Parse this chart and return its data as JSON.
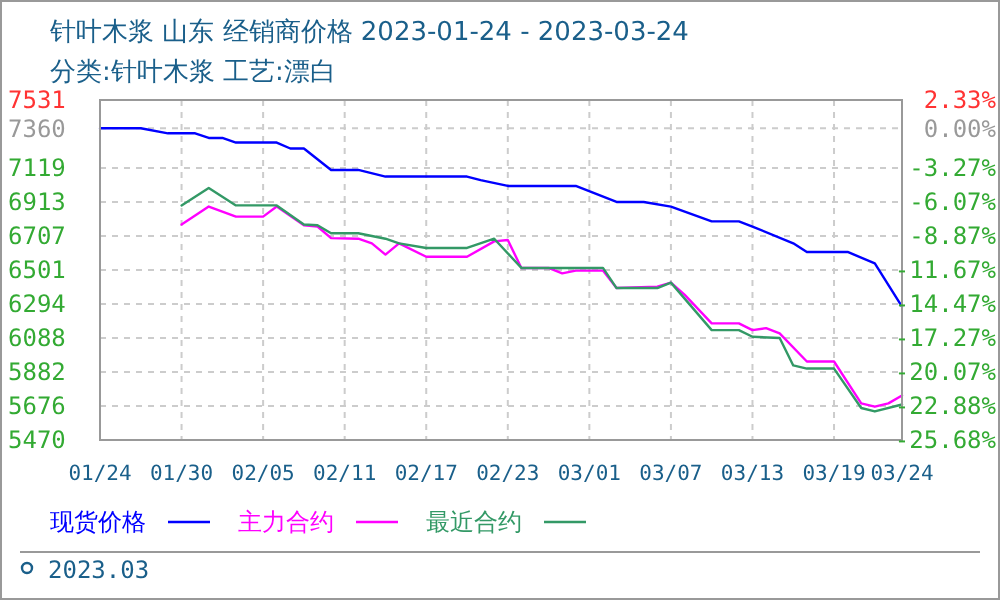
{
  "chart_data": {
    "type": "line",
    "title": "针叶木浆 山东 经销商价格 2023-01-24 - 2023-03-24",
    "subtitle": "分类:针叶木浆 工艺:漂白",
    "annotations": [
      "2023.03"
    ],
    "xlim": [
      "2023-01-24",
      "2023-03-24"
    ],
    "xticks": [
      {
        "value": "2023-01-24",
        "label": "01/24"
      },
      {
        "value": "2023-01-30",
        "label": "01/30"
      },
      {
        "value": "2023-02-05",
        "label": "02/05"
      },
      {
        "value": "2023-02-11",
        "label": "02/11"
      },
      {
        "value": "2023-02-17",
        "label": "02/17"
      },
      {
        "value": "2023-02-23",
        "label": "02/23"
      },
      {
        "value": "2023-03-01",
        "label": "03/01"
      },
      {
        "value": "2023-03-07",
        "label": "03/07"
      },
      {
        "value": "2023-03-13",
        "label": "03/13"
      },
      {
        "value": "2023-03-19",
        "label": "03/19"
      },
      {
        "value": "2023-03-24",
        "label": "03/24"
      }
    ],
    "ylim": [
      5470,
      7531
    ],
    "yticks": [
      5470,
      5676,
      5882,
      6088,
      6294,
      6501,
      6707,
      6913,
      7119,
      7360,
      7531
    ],
    "y2lim": [
      -25.68,
      2.33
    ],
    "y2ticks": [
      {
        "value": -25.68,
        "label": "-25.68%"
      },
      {
        "value": -22.88,
        "label": "-22.88%"
      },
      {
        "value": -20.07,
        "label": "-20.07%"
      },
      {
        "value": -17.27,
        "label": "-17.27%"
      },
      {
        "value": -14.47,
        "label": "-14.47%"
      },
      {
        "value": -11.67,
        "label": "-11.67%"
      },
      {
        "value": -8.87,
        "label": "-8.87%"
      },
      {
        "value": -6.07,
        "label": "-6.07%"
      },
      {
        "value": -3.27,
        "label": "-3.27%"
      },
      {
        "value": 0,
        "label": "0.00%"
      },
      {
        "value": 2.33,
        "label": "2.33%"
      }
    ],
    "grid": true,
    "legend": "bottom",
    "series": [
      {
        "name": "现货价格",
        "color": "#0000ff",
        "x": [
          "2023-01-24",
          "2023-01-27",
          "2023-01-29",
          "2023-01-31",
          "2023-02-01",
          "2023-02-02",
          "2023-02-03",
          "2023-02-06",
          "2023-02-07",
          "2023-02-08",
          "2023-02-10",
          "2023-02-12",
          "2023-02-14",
          "2023-02-20",
          "2023-02-21",
          "2023-02-23",
          "2023-02-28",
          "2023-03-03",
          "2023-03-05",
          "2023-03-07",
          "2023-03-10",
          "2023-03-12",
          "2023-03-13",
          "2023-03-16",
          "2023-03-17",
          "2023-03-20",
          "2023-03-22",
          "2023-03-24"
        ],
        "values": [
          7360,
          7360,
          7329,
          7329,
          7301,
          7301,
          7273,
          7273,
          7237,
          7237,
          7107,
          7107,
          7067,
          7067,
          7045,
          7010,
          7010,
          6913,
          6913,
          6885,
          6795,
          6795,
          6764,
          6662,
          6610,
          6610,
          6541,
          6279
        ]
      },
      {
        "name": "主力合约",
        "color": "#ff00ff",
        "x": [
          "2023-01-30",
          "2023-02-01",
          "2023-02-03",
          "2023-02-05",
          "2023-02-06",
          "2023-02-08",
          "2023-02-09",
          "2023-02-10",
          "2023-02-12",
          "2023-02-13",
          "2023-02-14",
          "2023-02-15",
          "2023-02-17",
          "2023-02-20",
          "2023-02-22",
          "2023-02-23",
          "2023-02-24",
          "2023-02-26",
          "2023-02-27",
          "2023-02-28",
          "2023-03-02",
          "2023-03-03",
          "2023-03-06",
          "2023-03-07",
          "2023-03-08",
          "2023-03-10",
          "2023-03-12",
          "2023-03-13",
          "2023-03-14",
          "2023-03-15",
          "2023-03-17",
          "2023-03-19",
          "2023-03-21",
          "2023-03-22",
          "2023-03-23",
          "2023-03-24"
        ],
        "values": [
          6776,
          6885,
          6824,
          6824,
          6885,
          6772,
          6764,
          6694,
          6690,
          6662,
          6594,
          6662,
          6581,
          6581,
          6674,
          6682,
          6513,
          6513,
          6480,
          6497,
          6497,
          6391,
          6400,
          6424,
          6351,
          6177,
          6177,
          6136,
          6148,
          6116,
          5946,
          5946,
          5692,
          5672,
          5692,
          5740
        ]
      },
      {
        "name": "最近合约",
        "color": "#339966",
        "x": [
          "2023-01-30",
          "2023-02-01",
          "2023-02-03",
          "2023-02-06",
          "2023-02-08",
          "2023-02-09",
          "2023-02-10",
          "2023-02-12",
          "2023-02-14",
          "2023-02-15",
          "2023-02-17",
          "2023-02-20",
          "2023-02-22",
          "2023-02-24",
          "2023-03-02",
          "2023-03-03",
          "2023-03-06",
          "2023-03-07",
          "2023-03-10",
          "2023-03-12",
          "2023-03-13",
          "2023-03-15",
          "2023-03-16",
          "2023-03-17",
          "2023-03-19",
          "2023-03-21",
          "2023-03-22",
          "2023-03-24"
        ],
        "values": [
          6892,
          6998,
          6892,
          6892,
          6776,
          6772,
          6723,
          6723,
          6690,
          6662,
          6634,
          6634,
          6690,
          6513,
          6513,
          6391,
          6391,
          6424,
          6136,
          6136,
          6096,
          6088,
          5922,
          5903,
          5903,
          5664,
          5643,
          5685
        ]
      }
    ]
  }
}
